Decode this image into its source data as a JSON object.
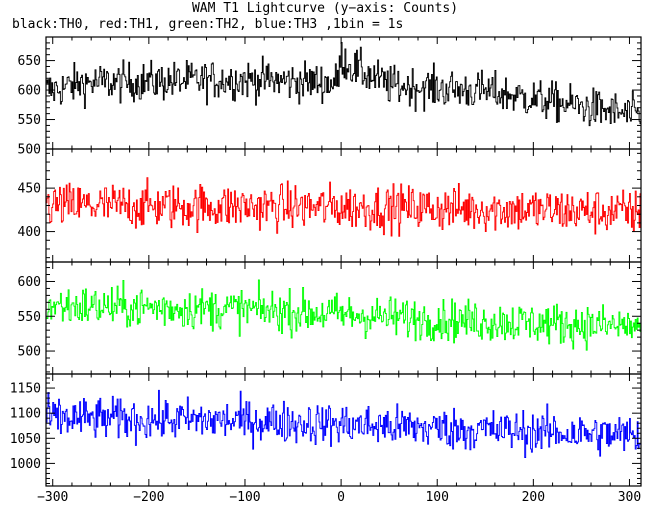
{
  "title": "WAM T1 Lightcurve (y−axis: Counts)",
  "subtitle": "black:TH0, red:TH1, green:TH2, blue:TH3 ,1bin = 1s",
  "chart_data": {
    "type": "line",
    "xlim": [
      -307,
      312
    ],
    "x_ticks": [
      -300,
      -200,
      -100,
      0,
      100,
      200,
      300
    ],
    "x_tick_labels": [
      "−300",
      "−200",
      "−100",
      "0",
      "100",
      "200",
      "300"
    ],
    "x_step": 1,
    "grid": false,
    "panels": [
      {
        "series_name": "TH0",
        "color": "#000000",
        "ylim": [
          500,
          690
        ],
        "y_ticks": [
          500,
          550,
          600,
          650
        ],
        "y_tick_labels": [
          "500",
          "550",
          "600",
          "650"
        ],
        "profile": [
          [
            -300,
            600
          ],
          [
            -270,
            612
          ],
          [
            -100,
            618
          ],
          [
            -5,
            612
          ],
          [
            0,
            655
          ],
          [
            10,
            640
          ],
          [
            50,
            608
          ],
          [
            150,
            598
          ],
          [
            250,
            572
          ],
          [
            312,
            555
          ]
        ],
        "noise_amplitude": 28
      },
      {
        "series_name": "TH1",
        "color": "#ff0000",
        "ylim": [
          365,
          495
        ],
        "y_ticks": [
          400,
          450
        ],
        "y_tick_labels": [
          "400",
          "450"
        ],
        "profile": [
          [
            -300,
            430
          ],
          [
            0,
            428
          ],
          [
            150,
            426
          ],
          [
            312,
            422
          ]
        ],
        "noise_amplitude": 22
      },
      {
        "series_name": "TH2",
        "color": "#00ff00",
        "ylim": [
          467,
          628
        ],
        "y_ticks": [
          500,
          550,
          600
        ],
        "y_tick_labels": [
          "500",
          "550",
          "600"
        ],
        "profile": [
          [
            -300,
            565
          ],
          [
            -100,
            560
          ],
          [
            100,
            545
          ],
          [
            312,
            535
          ]
        ],
        "noise_amplitude": 25
      },
      {
        "series_name": "TH3",
        "color": "#0000ff",
        "ylim": [
          955,
          1178
        ],
        "y_ticks": [
          1000,
          1050,
          1100,
          1150
        ],
        "y_tick_labels": [
          "1000",
          "1050",
          "1100",
          "1150"
        ],
        "profile": [
          [
            -300,
            1090
          ],
          [
            -100,
            1085
          ],
          [
            100,
            1070
          ],
          [
            312,
            1055
          ]
        ],
        "noise_amplitude": 35
      }
    ]
  }
}
